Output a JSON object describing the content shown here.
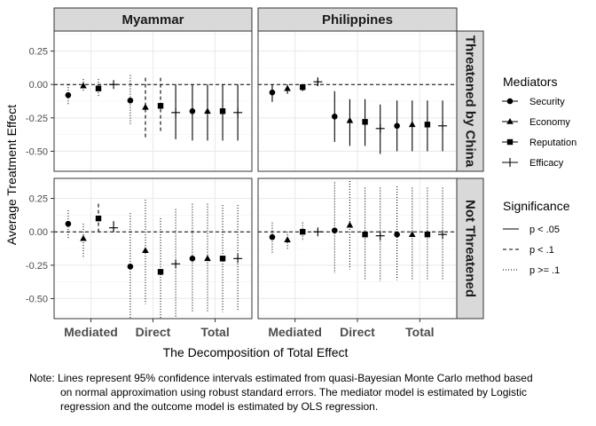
{
  "chart_data": {
    "type": "scatter",
    "xlabel": "The Decomposition of Total Effect",
    "ylabel": "Average Treatment Effect",
    "ylim": [
      -0.65,
      0.4
    ],
    "yticks": [
      0.25,
      0.0,
      -0.25,
      -0.5
    ],
    "ytick_labels": [
      "0.25",
      "0.00",
      "-0.25",
      "-0.50"
    ],
    "categories": [
      "Mediated",
      "Direct",
      "Total"
    ],
    "columns": [
      "Myammar",
      "Philippines"
    ],
    "rows": [
      "Threatened by China",
      "Not Threatened"
    ],
    "mediators": [
      "Security",
      "Economy",
      "Reputation",
      "Efficacy"
    ],
    "legend_mediators_title": "Mediators",
    "legend_significance_title": "Significance",
    "significance_levels": [
      "p < .05",
      "p < .1",
      "p >= .1"
    ],
    "grid": true,
    "panels": [
      {
        "column": "Myammar",
        "row": "Threatened by China",
        "points": {
          "Mediated": [
            {
              "mediator": "Security",
              "est": -0.08,
              "lo": -0.16,
              "hi": 0.0,
              "sig": "p >= .1"
            },
            {
              "mediator": "Economy",
              "est": -0.01,
              "lo": -0.05,
              "hi": 0.04,
              "sig": "p >= .1"
            },
            {
              "mediator": "Reputation",
              "est": -0.03,
              "lo": -0.09,
              "hi": 0.04,
              "sig": "p >= .1"
            },
            {
              "mediator": "Efficacy",
              "est": 0.0,
              "lo": -0.02,
              "hi": 0.02,
              "sig": "p >= .1"
            }
          ],
          "Direct": [
            {
              "mediator": "Security",
              "est": -0.12,
              "lo": -0.3,
              "hi": 0.07,
              "sig": "p >= .1"
            },
            {
              "mediator": "Economy",
              "est": -0.17,
              "lo": -0.4,
              "hi": 0.05,
              "sig": "p < .1"
            },
            {
              "mediator": "Reputation",
              "est": -0.16,
              "lo": -0.36,
              "hi": 0.05,
              "sig": "p < .1"
            },
            {
              "mediator": "Efficacy",
              "est": -0.21,
              "lo": -0.41,
              "hi": 0.0,
              "sig": "p < .05"
            }
          ],
          "Total": [
            {
              "mediator": "Security",
              "est": -0.2,
              "lo": -0.42,
              "hi": 0.0,
              "sig": "p < .05"
            },
            {
              "mediator": "Economy",
              "est": -0.2,
              "lo": -0.42,
              "hi": 0.0,
              "sig": "p < .05"
            },
            {
              "mediator": "Reputation",
              "est": -0.2,
              "lo": -0.42,
              "hi": 0.0,
              "sig": "p < .05"
            },
            {
              "mediator": "Efficacy",
              "est": -0.21,
              "lo": -0.42,
              "hi": 0.0,
              "sig": "p < .05"
            }
          ]
        }
      },
      {
        "column": "Philippines",
        "row": "Threatened by China",
        "points": {
          "Mediated": [
            {
              "mediator": "Security",
              "est": -0.06,
              "lo": -0.13,
              "hi": 0.0,
              "sig": "p < .05"
            },
            {
              "mediator": "Economy",
              "est": -0.03,
              "lo": -0.07,
              "hi": 0.0,
              "sig": "p < .05"
            },
            {
              "mediator": "Reputation",
              "est": -0.02,
              "lo": -0.05,
              "hi": 0.0,
              "sig": "p < .05"
            },
            {
              "mediator": "Efficacy",
              "est": 0.02,
              "lo": -0.01,
              "hi": 0.04,
              "sig": "p < .05"
            }
          ],
          "Direct": [
            {
              "mediator": "Security",
              "est": -0.24,
              "lo": -0.43,
              "hi": -0.05,
              "sig": "p < .05"
            },
            {
              "mediator": "Economy",
              "est": -0.27,
              "lo": -0.46,
              "hi": -0.11,
              "sig": "p < .05"
            },
            {
              "mediator": "Reputation",
              "est": -0.28,
              "lo": -0.46,
              "hi": -0.11,
              "sig": "p < .05"
            },
            {
              "mediator": "Efficacy",
              "est": -0.33,
              "lo": -0.52,
              "hi": -0.15,
              "sig": "p < .05"
            }
          ],
          "Total": [
            {
              "mediator": "Security",
              "est": -0.31,
              "lo": -0.5,
              "hi": -0.12,
              "sig": "p < .05"
            },
            {
              "mediator": "Economy",
              "est": -0.3,
              "lo": -0.5,
              "hi": -0.12,
              "sig": "p < .05"
            },
            {
              "mediator": "Reputation",
              "est": -0.3,
              "lo": -0.5,
              "hi": -0.12,
              "sig": "p < .05"
            },
            {
              "mediator": "Efficacy",
              "est": -0.31,
              "lo": -0.5,
              "hi": -0.12,
              "sig": "p < .05"
            }
          ]
        }
      },
      {
        "column": "Myammar",
        "row": "Not Threatened",
        "points": {
          "Mediated": [
            {
              "mediator": "Security",
              "est": 0.06,
              "lo": -0.06,
              "hi": 0.16,
              "sig": "p >= .1"
            },
            {
              "mediator": "Economy",
              "est": -0.05,
              "lo": -0.2,
              "hi": 0.06,
              "sig": "p >= .1"
            },
            {
              "mediator": "Reputation",
              "est": 0.1,
              "lo": 0.0,
              "hi": 0.21,
              "sig": "p < .1"
            },
            {
              "mediator": "Efficacy",
              "est": 0.03,
              "lo": -0.01,
              "hi": 0.08,
              "sig": "p < .1"
            }
          ],
          "Direct": [
            {
              "mediator": "Security",
              "est": -0.26,
              "lo": -0.65,
              "hi": 0.14,
              "sig": "p >= .1"
            },
            {
              "mediator": "Economy",
              "est": -0.14,
              "lo": -0.54,
              "hi": 0.24,
              "sig": "p >= .1"
            },
            {
              "mediator": "Reputation",
              "est": -0.3,
              "lo": -0.65,
              "hi": 0.1,
              "sig": "p >= .1"
            },
            {
              "mediator": "Efficacy",
              "est": -0.24,
              "lo": -0.64,
              "hi": 0.17,
              "sig": "p >= .1"
            }
          ],
          "Total": [
            {
              "mediator": "Security",
              "est": -0.2,
              "lo": -0.6,
              "hi": 0.21,
              "sig": "p >= .1"
            },
            {
              "mediator": "Economy",
              "est": -0.2,
              "lo": -0.6,
              "hi": 0.21,
              "sig": "p >= .1"
            },
            {
              "mediator": "Reputation",
              "est": -0.2,
              "lo": -0.6,
              "hi": 0.2,
              "sig": "p >= .1"
            },
            {
              "mediator": "Efficacy",
              "est": -0.2,
              "lo": -0.59,
              "hi": 0.2,
              "sig": "p >= .1"
            }
          ]
        }
      },
      {
        "column": "Philippines",
        "row": "Not Threatened",
        "points": {
          "Mediated": [
            {
              "mediator": "Security",
              "est": -0.04,
              "lo": -0.17,
              "hi": 0.07,
              "sig": "p >= .1"
            },
            {
              "mediator": "Economy",
              "est": -0.06,
              "lo": -0.13,
              "hi": 0.0,
              "sig": "p >= .1"
            },
            {
              "mediator": "Reputation",
              "est": 0.0,
              "lo": -0.07,
              "hi": 0.07,
              "sig": "p >= .1"
            },
            {
              "mediator": "Efficacy",
              "est": 0.0,
              "lo": -0.02,
              "hi": 0.02,
              "sig": "p >= .1"
            }
          ],
          "Direct": [
            {
              "mediator": "Security",
              "est": 0.01,
              "lo": -0.31,
              "hi": 0.37,
              "sig": "p >= .1"
            },
            {
              "mediator": "Economy",
              "est": 0.05,
              "lo": -0.28,
              "hi": 0.38,
              "sig": "p >= .1"
            },
            {
              "mediator": "Reputation",
              "est": -0.02,
              "lo": -0.36,
              "hi": 0.33,
              "sig": "p >= .1"
            },
            {
              "mediator": "Efficacy",
              "est": -0.03,
              "lo": -0.37,
              "hi": 0.33,
              "sig": "p >= .1"
            }
          ],
          "Total": [
            {
              "mediator": "Security",
              "est": -0.02,
              "lo": -0.36,
              "hi": 0.34,
              "sig": "p >= .1"
            },
            {
              "mediator": "Economy",
              "est": -0.02,
              "lo": -0.36,
              "hi": 0.33,
              "sig": "p >= .1"
            },
            {
              "mediator": "Reputation",
              "est": -0.02,
              "lo": -0.36,
              "hi": 0.33,
              "sig": "p >= .1"
            },
            {
              "mediator": "Efficacy",
              "est": -0.02,
              "lo": -0.36,
              "hi": 0.33,
              "sig": "p >= .1"
            }
          ]
        }
      }
    ]
  },
  "note": {
    "line1": "Note: Lines represent 95% confidence intervals estimated from quasi-Bayesian Monte Carlo method based",
    "line2": "on normal approximation using robust standard errors. The mediator model is estimated by Logistic",
    "line3": "regression and the outcome model is estimated by OLS regression."
  }
}
